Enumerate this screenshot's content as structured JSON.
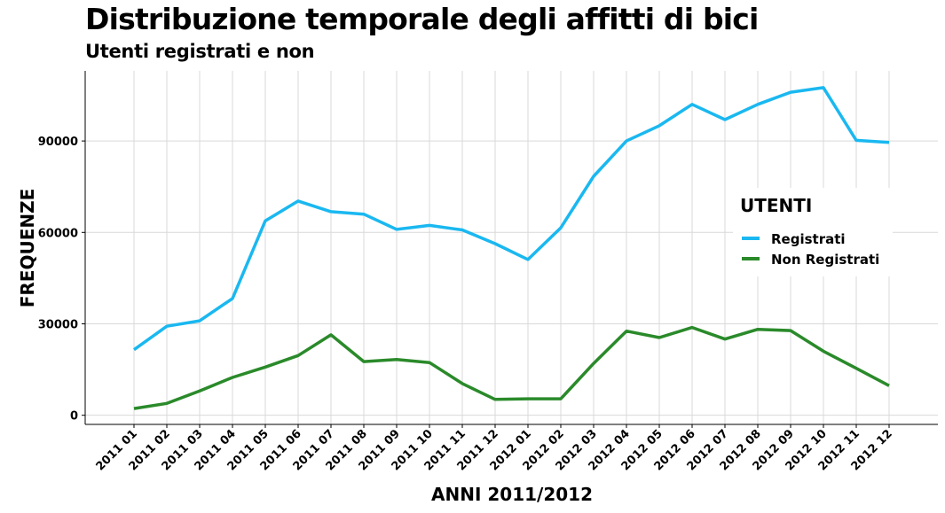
{
  "chart_data": {
    "type": "line",
    "title": "Distribuzione temporale degli affitti di bici",
    "subtitle": "Utenti registrati e non",
    "xlabel": "ANNI 2011/2012",
    "ylabel": "FREQUENZE",
    "categories": [
      "2011 01",
      "2011 02",
      "2011 03",
      "2011 04",
      "2011 05",
      "2011 06",
      "2011 07",
      "2011 08",
      "2011 09",
      "2011 10",
      "2011 11",
      "2011 12",
      "2012 01",
      "2012 02",
      "2012 03",
      "2012 04",
      "2012 05",
      "2012 06",
      "2012 07",
      "2012 08",
      "2012 09",
      "2012 10",
      "2012 11",
      "2012 12"
    ],
    "y_ticks": [
      0,
      30000,
      60000,
      90000
    ],
    "ylim": [
      -3000,
      113000
    ],
    "grid": true,
    "legend": {
      "title": "UTENTI",
      "position": "right"
    },
    "series": [
      {
        "name": "Registrati",
        "color": "#1ab8f0",
        "values": [
          21500,
          29200,
          31000,
          38300,
          63800,
          70300,
          66800,
          66000,
          61000,
          62300,
          60800,
          56300,
          51100,
          61500,
          78400,
          90000,
          95000,
          102000,
          97000,
          102000,
          106000,
          107500,
          90200,
          89500
        ]
      },
      {
        "name": "Non Registrati",
        "color": "#2a8a2a",
        "values": [
          2200,
          3900,
          8000,
          12400,
          15800,
          19600,
          26400,
          17600,
          18300,
          17300,
          10400,
          5200,
          5400,
          5400,
          17000,
          27600,
          25500,
          28800,
          25000,
          28200,
          27800,
          21000,
          15400,
          9700
        ]
      }
    ]
  }
}
